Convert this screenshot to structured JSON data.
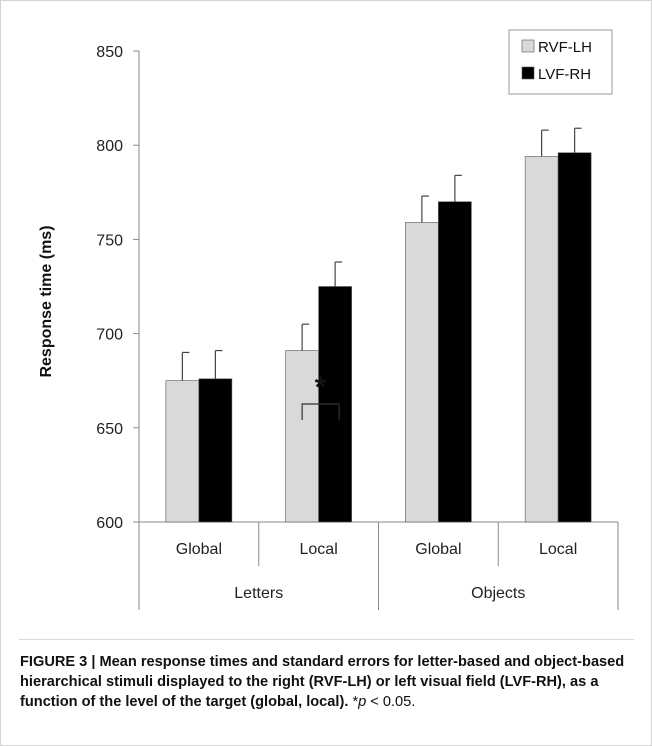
{
  "chart_data": {
    "type": "bar",
    "ylabel": "Response time (ms)",
    "ylim": [
      600,
      850
    ],
    "yticks": [
      600,
      650,
      700,
      750,
      800,
      850
    ],
    "grid": false,
    "legend_position": "top-right",
    "groups": [
      {
        "label": "Letters",
        "categories": [
          "Global",
          "Local"
        ]
      },
      {
        "label": "Objects",
        "categories": [
          "Global",
          "Local"
        ]
      }
    ],
    "categories": [
      "Global",
      "Local",
      "Global",
      "Local"
    ],
    "series": [
      {
        "name": "RVF-LH",
        "color": "#d9d9d9",
        "values": [
          675,
          691,
          759,
          794
        ],
        "errors": [
          15,
          14,
          14,
          14
        ]
      },
      {
        "name": "LVF-RH",
        "color": "#000000",
        "values": [
          676,
          725,
          770,
          796
        ],
        "errors": [
          15,
          13,
          14,
          13
        ]
      }
    ],
    "annotations": [
      {
        "text": "*",
        "category_index": 1
      }
    ]
  },
  "caption": {
    "bold": "FIGURE 3 | Mean response times and standard errors for letter-based and object-based hierarchical stimuli displayed to the right (RVF-LH) or left visual field (LVF-RH), as a function of the level of the target (global, local).",
    "star": "*",
    "p_symbol": "p",
    "rest": " < 0.05."
  }
}
